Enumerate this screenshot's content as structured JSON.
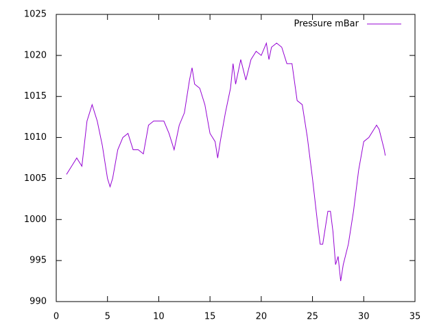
{
  "chart_data": {
    "type": "line",
    "x": [
      1.0,
      1.5,
      2.0,
      2.5,
      3.0,
      3.5,
      4.0,
      4.5,
      5.0,
      5.25,
      5.5,
      6.0,
      6.5,
      7.0,
      7.5,
      8.0,
      8.5,
      9.0,
      9.5,
      10.0,
      10.5,
      11.0,
      11.5,
      12.0,
      12.5,
      13.0,
      13.25,
      13.5,
      14.0,
      14.5,
      15.0,
      15.5,
      15.75,
      16.0,
      16.5,
      17.0,
      17.25,
      17.5,
      18.0,
      18.5,
      19.0,
      19.5,
      20.0,
      20.5,
      20.75,
      21.0,
      21.5,
      22.0,
      22.5,
      23.0,
      23.5,
      24.0,
      24.5,
      25.0,
      25.5,
      25.75,
      26.0,
      26.5,
      26.75,
      27.0,
      27.25,
      27.5,
      27.75,
      28.0,
      28.5,
      29.0,
      29.5,
      30.0,
      30.5,
      31.0,
      31.25,
      31.5,
      32.0,
      32.1
    ],
    "series": [
      {
        "name": "Pressure mBar",
        "color": "#9400d3",
        "values": [
          1005.5,
          1006.5,
          1007.5,
          1006.5,
          1012,
          1014,
          1012,
          1009,
          1005,
          1004,
          1005,
          1008.5,
          1010,
          1010.5,
          1008.5,
          1008.5,
          1008,
          1011.5,
          1012,
          1012,
          1012,
          1010.5,
          1008.5,
          1011.5,
          1013,
          1017,
          1018.5,
          1016.5,
          1016,
          1014,
          1010.5,
          1009.5,
          1007.5,
          1009.5,
          1013,
          1016,
          1019,
          1016.5,
          1019.5,
          1017,
          1019.5,
          1020.5,
          1020,
          1021.5,
          1019.5,
          1021,
          1021.5,
          1021,
          1019,
          1019,
          1014.5,
          1014,
          1010,
          1005,
          999.5,
          997,
          997,
          1001,
          1001,
          998.5,
          994.5,
          995.5,
          992.5,
          994.5,
          997,
          1001,
          1006,
          1009.5,
          1010,
          1011,
          1011.5,
          1011,
          1008.5,
          1007.8
        ]
      }
    ],
    "xlim": [
      0,
      35
    ],
    "xticks": [
      0,
      5,
      10,
      15,
      20,
      25,
      30,
      35
    ],
    "ylim": [
      990,
      1025
    ],
    "yticks": [
      990,
      995,
      1000,
      1005,
      1010,
      1015,
      1020,
      1025
    ],
    "legend": "top-right"
  }
}
